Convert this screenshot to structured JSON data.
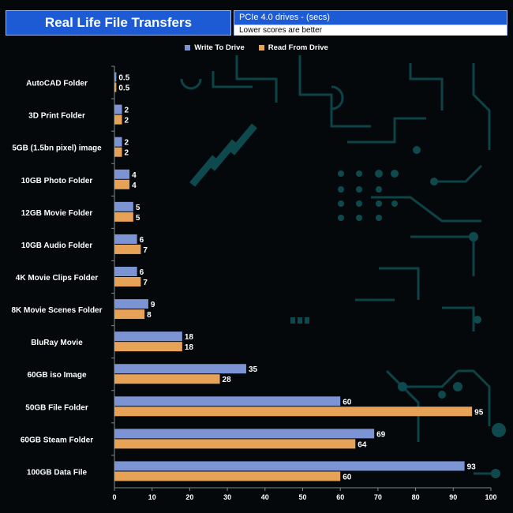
{
  "header": {
    "title": "Real Life File Transfers",
    "subtitle": "PCIe 4.0 drives - (secs)",
    "note": "Lower scores are better"
  },
  "colors": {
    "write": "#7c93d4",
    "read": "#e6a257",
    "accent": "#1c5bd3",
    "circuit": "#0e4a4d"
  },
  "chart_data": {
    "type": "bar",
    "orientation": "horizontal",
    "title": "Real Life File Transfers",
    "subtitle": "PCIe 4.0 drives - (secs)",
    "note": "Lower scores are better",
    "categories": [
      "AutoCAD Folder",
      "3D Print Folder",
      "5GB (1.5bn pixel) image",
      "10GB Photo Folder",
      "12GB Movie Folder",
      "10GB Audio Folder",
      "4K Movie Clips Folder",
      "8K Movie Scenes Folder",
      "BluRay Movie",
      "60GB iso Image",
      "50GB File Folder",
      "60GB Steam Folder",
      "100GB Data File"
    ],
    "series": [
      {
        "name": "Write To  Drive",
        "values": [
          0.5,
          2,
          2,
          4,
          5,
          6,
          6,
          9,
          18,
          35,
          60,
          69,
          93
        ]
      },
      {
        "name": "Read From  Drive",
        "values": [
          0.5,
          2,
          2,
          4,
          5,
          7,
          7,
          8,
          18,
          28,
          95,
          64,
          60
        ]
      }
    ],
    "xlim": [
      0,
      100
    ],
    "xticks": [
      0,
      10,
      20,
      30,
      40,
      50,
      60,
      70,
      80,
      90,
      100
    ],
    "legend": "top-center",
    "grid": false
  }
}
